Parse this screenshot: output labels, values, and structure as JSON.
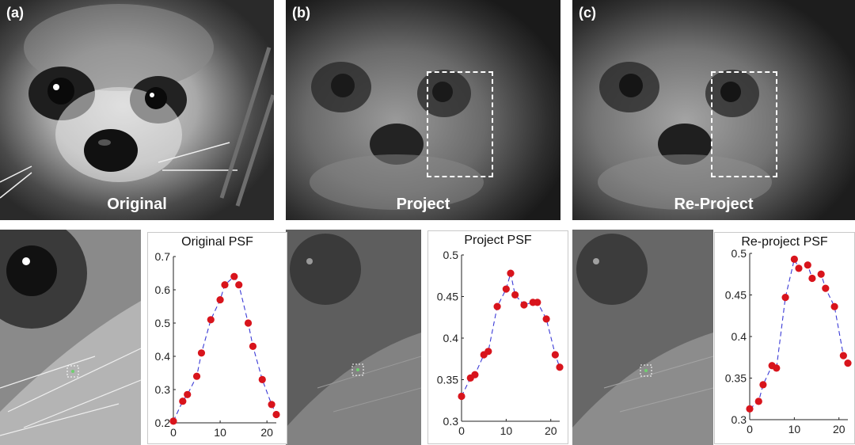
{
  "panels": [
    {
      "tag": "(a)",
      "caption": "Original"
    },
    {
      "tag": "(b)",
      "caption": "Project"
    },
    {
      "tag": "(c)",
      "caption": "Re-Project"
    }
  ],
  "chart_data": [
    {
      "type": "line",
      "title": "Original PSF",
      "xlabel": "",
      "ylabel": "",
      "xlim": [
        0,
        22
      ],
      "ylim": [
        0.2,
        0.7
      ],
      "xticks": [
        0,
        10,
        20
      ],
      "yticks": [
        0.2,
        0.3,
        0.4,
        0.5,
        0.6,
        0.7
      ],
      "ytick_labels": [
        "0.2",
        "0.3",
        "0.4",
        "0.5",
        "0.6",
        "0.7"
      ],
      "x": [
        0,
        2,
        3,
        5,
        6,
        8,
        10,
        11,
        13,
        14,
        16,
        17,
        19,
        21,
        22
      ],
      "y": [
        0.205,
        0.265,
        0.285,
        0.34,
        0.41,
        0.51,
        0.57,
        0.615,
        0.64,
        0.615,
        0.5,
        0.43,
        0.33,
        0.255,
        0.225
      ],
      "line_color": "#3a3ad6",
      "marker_color": "#d8141c",
      "line_style": "dashed",
      "grid": false
    },
    {
      "type": "line",
      "title": "Project PSF",
      "xlabel": "",
      "ylabel": "",
      "xlim": [
        0,
        22
      ],
      "ylim": [
        0.3,
        0.5
      ],
      "xticks": [
        0,
        10,
        20
      ],
      "yticks": [
        0.3,
        0.35,
        0.4,
        0.45,
        0.5
      ],
      "ytick_labels": [
        "0.3",
        "0.35",
        "0.4",
        "0.45",
        "0.5"
      ],
      "x": [
        0,
        2,
        3,
        5,
        6,
        8,
        10,
        11,
        12,
        14,
        16,
        17,
        19,
        21,
        22
      ],
      "y": [
        0.33,
        0.352,
        0.356,
        0.38,
        0.384,
        0.438,
        0.459,
        0.478,
        0.452,
        0.44,
        0.443,
        0.443,
        0.423,
        0.38,
        0.365
      ],
      "line_color": "#3a3ad6",
      "marker_color": "#d8141c",
      "line_style": "dashed",
      "grid": false
    },
    {
      "type": "line",
      "title": "Re-project PSF",
      "xlabel": "",
      "ylabel": "",
      "xlim": [
        0,
        22
      ],
      "ylim": [
        0.3,
        0.5
      ],
      "xticks": [
        0,
        10,
        20
      ],
      "yticks": [
        0.3,
        0.35,
        0.4,
        0.45,
        0.5
      ],
      "ytick_labels": [
        "0.3",
        "0.35",
        "0.4",
        "0.45",
        "0.5"
      ],
      "x": [
        0,
        2,
        3,
        5,
        6,
        8,
        10,
        11,
        13,
        14,
        16,
        17,
        19,
        21,
        22
      ],
      "y": [
        0.313,
        0.322,
        0.342,
        0.365,
        0.362,
        0.447,
        0.493,
        0.482,
        0.486,
        0.47,
        0.475,
        0.458,
        0.436,
        0.377,
        0.368
      ],
      "line_color": "#3a3ad6",
      "marker_color": "#d8141c",
      "line_style": "dashed",
      "grid": false
    }
  ]
}
